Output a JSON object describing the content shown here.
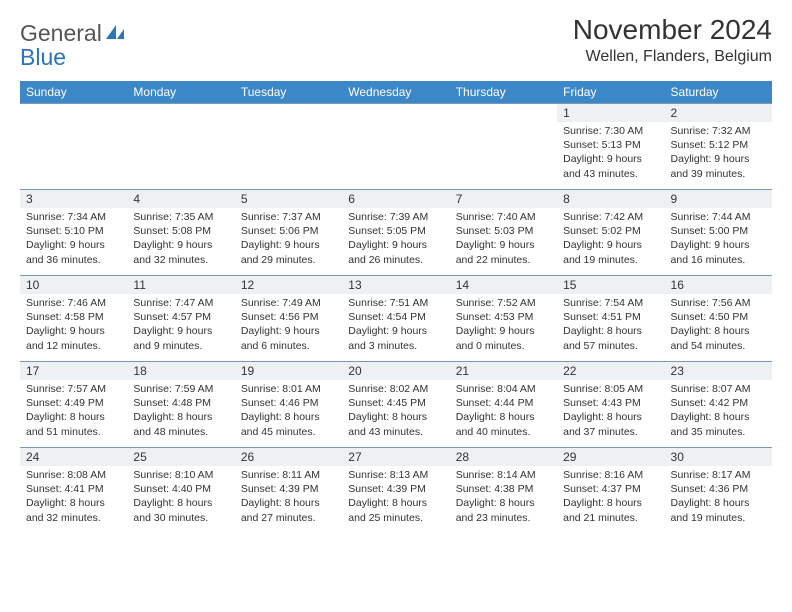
{
  "logo": {
    "text_gray": "General",
    "text_blue": "Blue"
  },
  "header": {
    "month_title": "November 2024",
    "location": "Wellen, Flanders, Belgium"
  },
  "colors": {
    "header_bg": "#3c87c7",
    "header_text": "#ffffff",
    "daynum_bg": "#eef1f4",
    "border": "#7a98b8",
    "body_text": "#333333",
    "logo_gray": "#555555",
    "logo_blue": "#2a75bb",
    "page_bg": "#ffffff"
  },
  "day_names": [
    "Sunday",
    "Monday",
    "Tuesday",
    "Wednesday",
    "Thursday",
    "Friday",
    "Saturday"
  ],
  "weeks": [
    [
      {
        "n": "",
        "sr": "",
        "ss": "",
        "dl": ""
      },
      {
        "n": "",
        "sr": "",
        "ss": "",
        "dl": ""
      },
      {
        "n": "",
        "sr": "",
        "ss": "",
        "dl": ""
      },
      {
        "n": "",
        "sr": "",
        "ss": "",
        "dl": ""
      },
      {
        "n": "",
        "sr": "",
        "ss": "",
        "dl": ""
      },
      {
        "n": "1",
        "sr": "Sunrise: 7:30 AM",
        "ss": "Sunset: 5:13 PM",
        "dl": "Daylight: 9 hours and 43 minutes."
      },
      {
        "n": "2",
        "sr": "Sunrise: 7:32 AM",
        "ss": "Sunset: 5:12 PM",
        "dl": "Daylight: 9 hours and 39 minutes."
      }
    ],
    [
      {
        "n": "3",
        "sr": "Sunrise: 7:34 AM",
        "ss": "Sunset: 5:10 PM",
        "dl": "Daylight: 9 hours and 36 minutes."
      },
      {
        "n": "4",
        "sr": "Sunrise: 7:35 AM",
        "ss": "Sunset: 5:08 PM",
        "dl": "Daylight: 9 hours and 32 minutes."
      },
      {
        "n": "5",
        "sr": "Sunrise: 7:37 AM",
        "ss": "Sunset: 5:06 PM",
        "dl": "Daylight: 9 hours and 29 minutes."
      },
      {
        "n": "6",
        "sr": "Sunrise: 7:39 AM",
        "ss": "Sunset: 5:05 PM",
        "dl": "Daylight: 9 hours and 26 minutes."
      },
      {
        "n": "7",
        "sr": "Sunrise: 7:40 AM",
        "ss": "Sunset: 5:03 PM",
        "dl": "Daylight: 9 hours and 22 minutes."
      },
      {
        "n": "8",
        "sr": "Sunrise: 7:42 AM",
        "ss": "Sunset: 5:02 PM",
        "dl": "Daylight: 9 hours and 19 minutes."
      },
      {
        "n": "9",
        "sr": "Sunrise: 7:44 AM",
        "ss": "Sunset: 5:00 PM",
        "dl": "Daylight: 9 hours and 16 minutes."
      }
    ],
    [
      {
        "n": "10",
        "sr": "Sunrise: 7:46 AM",
        "ss": "Sunset: 4:58 PM",
        "dl": "Daylight: 9 hours and 12 minutes."
      },
      {
        "n": "11",
        "sr": "Sunrise: 7:47 AM",
        "ss": "Sunset: 4:57 PM",
        "dl": "Daylight: 9 hours and 9 minutes."
      },
      {
        "n": "12",
        "sr": "Sunrise: 7:49 AM",
        "ss": "Sunset: 4:56 PM",
        "dl": "Daylight: 9 hours and 6 minutes."
      },
      {
        "n": "13",
        "sr": "Sunrise: 7:51 AM",
        "ss": "Sunset: 4:54 PM",
        "dl": "Daylight: 9 hours and 3 minutes."
      },
      {
        "n": "14",
        "sr": "Sunrise: 7:52 AM",
        "ss": "Sunset: 4:53 PM",
        "dl": "Daylight: 9 hours and 0 minutes."
      },
      {
        "n": "15",
        "sr": "Sunrise: 7:54 AM",
        "ss": "Sunset: 4:51 PM",
        "dl": "Daylight: 8 hours and 57 minutes."
      },
      {
        "n": "16",
        "sr": "Sunrise: 7:56 AM",
        "ss": "Sunset: 4:50 PM",
        "dl": "Daylight: 8 hours and 54 minutes."
      }
    ],
    [
      {
        "n": "17",
        "sr": "Sunrise: 7:57 AM",
        "ss": "Sunset: 4:49 PM",
        "dl": "Daylight: 8 hours and 51 minutes."
      },
      {
        "n": "18",
        "sr": "Sunrise: 7:59 AM",
        "ss": "Sunset: 4:48 PM",
        "dl": "Daylight: 8 hours and 48 minutes."
      },
      {
        "n": "19",
        "sr": "Sunrise: 8:01 AM",
        "ss": "Sunset: 4:46 PM",
        "dl": "Daylight: 8 hours and 45 minutes."
      },
      {
        "n": "20",
        "sr": "Sunrise: 8:02 AM",
        "ss": "Sunset: 4:45 PM",
        "dl": "Daylight: 8 hours and 43 minutes."
      },
      {
        "n": "21",
        "sr": "Sunrise: 8:04 AM",
        "ss": "Sunset: 4:44 PM",
        "dl": "Daylight: 8 hours and 40 minutes."
      },
      {
        "n": "22",
        "sr": "Sunrise: 8:05 AM",
        "ss": "Sunset: 4:43 PM",
        "dl": "Daylight: 8 hours and 37 minutes."
      },
      {
        "n": "23",
        "sr": "Sunrise: 8:07 AM",
        "ss": "Sunset: 4:42 PM",
        "dl": "Daylight: 8 hours and 35 minutes."
      }
    ],
    [
      {
        "n": "24",
        "sr": "Sunrise: 8:08 AM",
        "ss": "Sunset: 4:41 PM",
        "dl": "Daylight: 8 hours and 32 minutes."
      },
      {
        "n": "25",
        "sr": "Sunrise: 8:10 AM",
        "ss": "Sunset: 4:40 PM",
        "dl": "Daylight: 8 hours and 30 minutes."
      },
      {
        "n": "26",
        "sr": "Sunrise: 8:11 AM",
        "ss": "Sunset: 4:39 PM",
        "dl": "Daylight: 8 hours and 27 minutes."
      },
      {
        "n": "27",
        "sr": "Sunrise: 8:13 AM",
        "ss": "Sunset: 4:39 PM",
        "dl": "Daylight: 8 hours and 25 minutes."
      },
      {
        "n": "28",
        "sr": "Sunrise: 8:14 AM",
        "ss": "Sunset: 4:38 PM",
        "dl": "Daylight: 8 hours and 23 minutes."
      },
      {
        "n": "29",
        "sr": "Sunrise: 8:16 AM",
        "ss": "Sunset: 4:37 PM",
        "dl": "Daylight: 8 hours and 21 minutes."
      },
      {
        "n": "30",
        "sr": "Sunrise: 8:17 AM",
        "ss": "Sunset: 4:36 PM",
        "dl": "Daylight: 8 hours and 19 minutes."
      }
    ]
  ]
}
